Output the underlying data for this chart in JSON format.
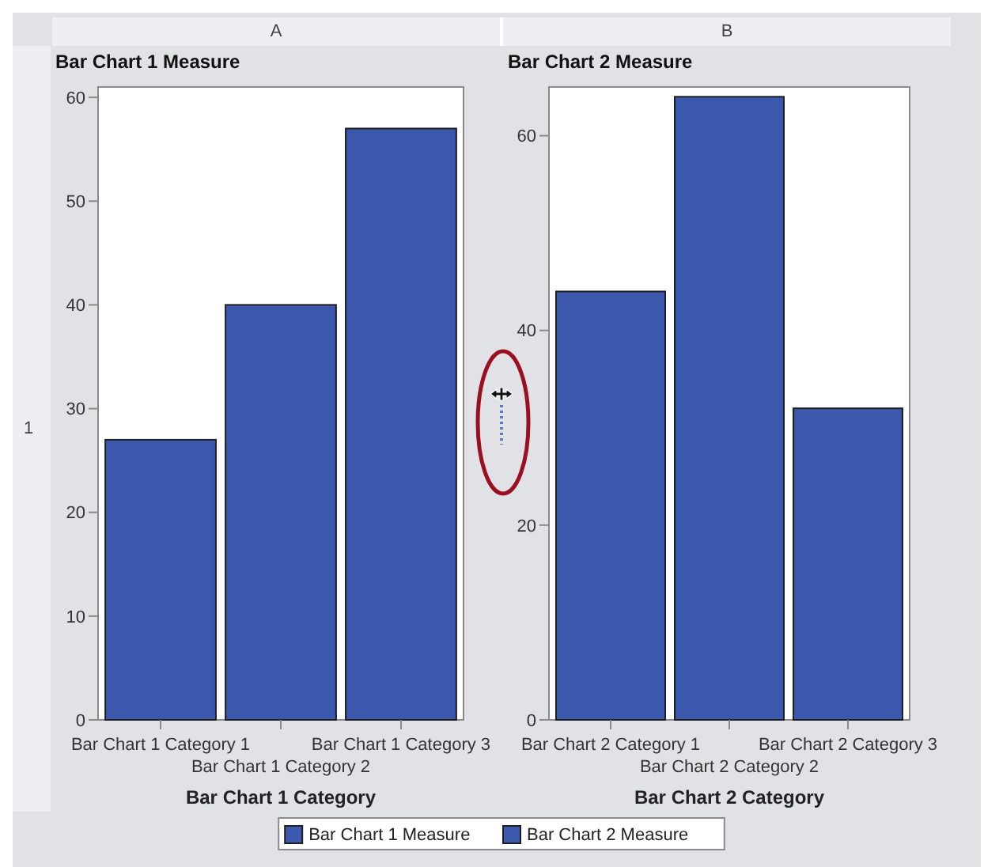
{
  "chart_data": [
    {
      "type": "bar",
      "ylabel": "Bar Chart 1 Measure",
      "xlabel": "Bar Chart 1 Category",
      "categories": [
        "Bar Chart 1 Category 1",
        "Bar Chart 1 Category 2",
        "Bar Chart 1 Category 3"
      ],
      "series": [
        {
          "name": "Bar Chart 1 Measure",
          "color": "#3c58ad",
          "values": [
            27,
            40,
            57
          ]
        }
      ],
      "ylim": [
        0,
        61
      ],
      "yticks": [
        0,
        10,
        20,
        30,
        40,
        50,
        60
      ],
      "grid": false,
      "legend": "bottom",
      "annotations": [
        "A",
        "1"
      ]
    },
    {
      "type": "bar",
      "ylabel": "Bar Chart 2 Measure",
      "xlabel": "Bar Chart 2 Category",
      "categories": [
        "Bar Chart 2 Category 1",
        "Bar Chart 2 Category 2",
        "Bar Chart 2 Category 3"
      ],
      "series": [
        {
          "name": "Bar Chart 2 Measure",
          "color": "#3c58ad",
          "values": [
            44,
            64,
            32
          ]
        }
      ],
      "ylim": [
        0,
        65
      ],
      "yticks": [
        0,
        20,
        40,
        60
      ],
      "grid": false,
      "legend": "bottom",
      "annotations": [
        "B"
      ]
    }
  ]
}
